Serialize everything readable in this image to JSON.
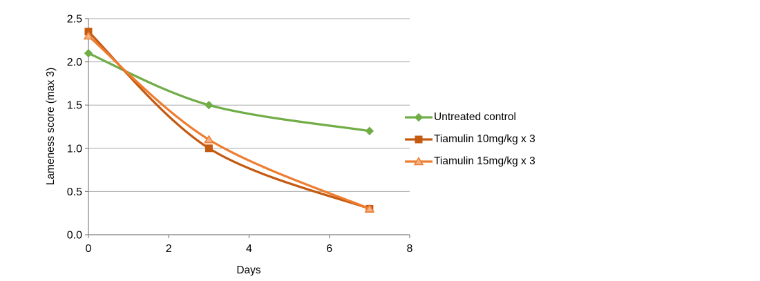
{
  "chart_data": {
    "type": "line",
    "smoothed": true,
    "title": "",
    "xlabel": "Days",
    "ylabel": "Lameness score (max 3)",
    "x": [
      0,
      3,
      7
    ],
    "xlim": [
      0,
      8
    ],
    "ylim": [
      0,
      2.5
    ],
    "xticks": [
      0,
      2,
      4,
      6,
      8
    ],
    "xtick_labels": [
      "0",
      "2",
      "4",
      "6",
      "8"
    ],
    "yticks": [
      0,
      0.5,
      1.0,
      1.5,
      2.0,
      2.5
    ],
    "ytick_labels": [
      "0.0",
      "0.5",
      "1.0",
      "1.5",
      "2.0",
      "2.5"
    ],
    "grid": "horizontal",
    "legend_position": "right-middle",
    "series": [
      {
        "name": "Untreated control",
        "color": "#70AD47",
        "marker": "diamond",
        "marker_fill": "#70AD47",
        "marker_stroke": "#70AD47",
        "values": [
          2.1,
          1.5,
          1.2
        ]
      },
      {
        "name": "Tiamulin 10mg/kg x 3",
        "color": "#C55A11",
        "marker": "square",
        "marker_fill": "#C55A11",
        "marker_stroke": "#C55A11",
        "values": [
          2.35,
          1.0,
          0.3
        ]
      },
      {
        "name": "Tiamulin 15mg/kg x 3",
        "color": "#ED7D31",
        "marker": "triangle",
        "marker_fill": "#F4B183",
        "marker_stroke": "#ED7D31",
        "values": [
          2.3,
          1.1,
          0.3
        ]
      }
    ],
    "colors": {
      "axis": "#808080",
      "gridline": "#A6A6A6",
      "text": "#000000",
      "background": "#FFFFFF"
    }
  }
}
